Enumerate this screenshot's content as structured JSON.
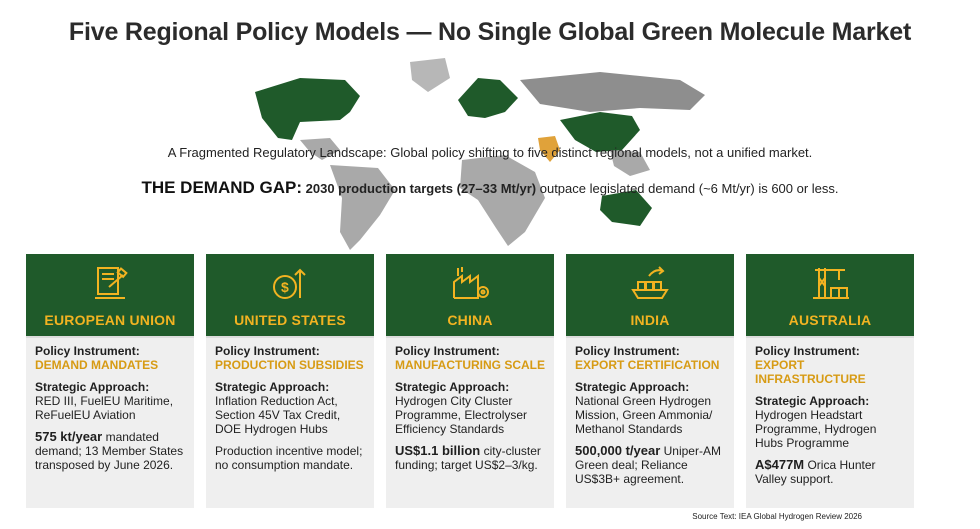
{
  "title": "Five Regional Policy Models — No Single Global Green Molecule Market",
  "subtitle": "A Fragmented Regulatory Landscape: Global policy shifting to five distinct regional models, not a unified market.",
  "demand_gap": {
    "lead": "THE DEMAND GAP:",
    "bold": "2030 production targets (27–33 Mt/yr)",
    "rest": "outpace legislated demand (~6 Mt/yr) is 600 or less."
  },
  "colors": {
    "green": "#1f5a2a",
    "gold": "#f2b321",
    "instrument": "#d79b14",
    "card_bg": "#efefef"
  },
  "cards": [
    {
      "icon": "gavel-document-icon",
      "region": "EUROPEAN UNION",
      "instrument_label": "Policy Instrument:",
      "instrument": "DEMAND MANDATES",
      "approach_label": "Strategic Approach:",
      "approach": "RED III, FuelEU Maritime, ReFuelEU Aviation",
      "highlight": "575 kt/year",
      "detail": " mandated demand; 13 Member States transposed by June 2026."
    },
    {
      "icon": "dollar-growth-icon",
      "region": "UNITED STATES",
      "instrument_label": "Policy Instrument:",
      "instrument": "PRODUCTION SUBSIDIES",
      "approach_label": "Strategic Approach:",
      "approach": "Inflation Reduction Act, Section 45V Tax Credit, DOE Hydrogen Hubs",
      "highlight": "",
      "detail": "Production incentive model; no consumption mandate."
    },
    {
      "icon": "factory-gear-icon",
      "region": "CHINA",
      "instrument_label": "Policy Instrument:",
      "instrument": "MANUFACTURING SCALE",
      "approach_label": "Strategic Approach:",
      "approach": "Hydrogen City Cluster Programme, Electrolyser Efficiency Standards",
      "highlight": "US$1.1 billion",
      "detail": " city-cluster funding; target US$2–3/kg."
    },
    {
      "icon": "cargo-ship-icon",
      "region": "INDIA",
      "instrument_label": "Policy Instrument:",
      "instrument": "EXPORT CERTIFICATION",
      "approach_label": "Strategic Approach:",
      "approach": "National Green Hydrogen Mission, Green Ammonia/ Methanol Standards",
      "highlight": "500,000 t/year",
      "detail": " Uniper-AM Green deal; Reliance US$3B+ agreement."
    },
    {
      "icon": "port-crane-icon",
      "region": "AUSTRALIA",
      "instrument_label": "Policy Instrument:",
      "instrument": "EXPORT INFRASTRUCTURE",
      "approach_label": "Strategic Approach:",
      "approach": "Hydrogen Headstart Programme, Hydrogen Hubs Programme",
      "highlight": "A$477M",
      "detail": " Orica Hunter Valley support."
    }
  ],
  "source": "Source Text: IEA Global Hydrogen Review 2026"
}
